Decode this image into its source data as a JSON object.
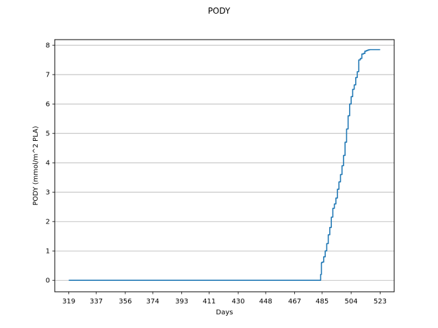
{
  "chart_data": {
    "type": "line",
    "title": "PODY",
    "xlabel": "Days",
    "ylabel": "PODY (mmol/m^2 PLA)",
    "xlim": [
      309.8,
      532.2
    ],
    "ylim": [
      -0.39,
      8.19
    ],
    "x_ticks": [
      319,
      337,
      356,
      374,
      393,
      411,
      430,
      448,
      467,
      485,
      504,
      523
    ],
    "y_ticks": [
      0,
      1,
      2,
      3,
      4,
      5,
      6,
      7,
      8
    ],
    "grid": {
      "y": true,
      "x": false
    },
    "line_color": "#1f77b4",
    "series": [
      {
        "x": [
          319,
          483.5,
          484,
          484.5,
          485,
          486,
          487,
          488,
          489,
          490,
          491,
          492,
          493,
          494,
          495,
          496,
          497,
          498,
          499,
          500,
          501,
          502,
          503,
          504,
          505,
          506,
          507,
          508,
          509,
          510,
          511,
          512,
          513,
          514,
          515,
          516,
          517,
          518,
          519,
          520,
          521,
          522,
          523
        ],
        "y": [
          0,
          0,
          0.2,
          0.6,
          0.62,
          0.8,
          1.0,
          1.25,
          1.55,
          1.8,
          2.15,
          2.45,
          2.6,
          2.8,
          3.1,
          3.35,
          3.6,
          3.9,
          4.25,
          4.7,
          5.15,
          5.6,
          6.0,
          6.25,
          6.5,
          6.65,
          6.9,
          7.1,
          7.5,
          7.55,
          7.7,
          7.72,
          7.8,
          7.82,
          7.84,
          7.85,
          7.85,
          7.85,
          7.85,
          7.85,
          7.85,
          7.85,
          7.85
        ]
      }
    ]
  }
}
